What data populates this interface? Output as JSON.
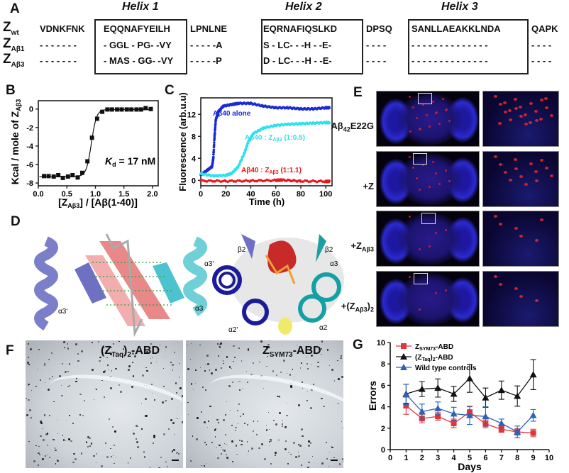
{
  "panel_labels": {
    "a": "A",
    "b": "B",
    "c": "C",
    "d": "D",
    "e": "E",
    "f": "F",
    "g": "G"
  },
  "panel_a": {
    "helix_titles": [
      "Helix 1",
      "Helix 2",
      "Helix 3"
    ],
    "rows": [
      {
        "name": "Z",
        "sub": "wt",
        "segments": [
          "VDNKFNK",
          "EQQNAFYEILH",
          "LPNLNE",
          "EQRNAFIQSLKD",
          "DPSQ",
          "SANLLAEAKKLNDA",
          "QAPK"
        ]
      },
      {
        "name": "Z",
        "sub": "Aβ1",
        "segments": [
          "- - - - - - -",
          "- GGL - PG- -VY",
          "- - - - -A",
          "S - LC- - -H - -E-",
          "- - - -",
          "- - - - - - - - - - - - - -",
          "- - - -"
        ]
      },
      {
        "name": "Z",
        "sub": "Aβ3",
        "segments": [
          "- - - - - - -",
          "- MAS - GG- -VY",
          "- - - - -P",
          "D - LC- - -H - -E-",
          "- - - -",
          "- - - - - - - - - - - - - -",
          "- - - -"
        ]
      }
    ]
  },
  "chart_data": [
    {
      "panel": "B",
      "type": "scatter",
      "xlabel": "[Z_Aβ3] / [Aβ(1-40)]",
      "xlabel_parts": [
        "[Z",
        "Aβ3",
        "] / [Aβ(1-40)]"
      ],
      "ylabel": "Kcal / mole of Z_Aβ3",
      "ylabel_parts": [
        "Kcal / mole of Z",
        "Aβ3"
      ],
      "xlim": [
        0,
        2.1
      ],
      "ylim": [
        -8.3,
        0.9
      ],
      "xticks": [
        "0.0",
        "0.5",
        "1.0",
        "1.5",
        "2.0"
      ],
      "yticks": [
        "0",
        "-2",
        "-4",
        "-6",
        "-8"
      ],
      "annotation": {
        "k": "K",
        "sub": "d",
        "text": " = 17 nM"
      },
      "points": [
        [
          0.1,
          -7.25
        ],
        [
          0.18,
          -7.25
        ],
        [
          0.27,
          -7.3
        ],
        [
          0.35,
          -7.15
        ],
        [
          0.43,
          -7.45
        ],
        [
          0.52,
          -7.3
        ],
        [
          0.6,
          -7.15
        ],
        [
          0.69,
          -7.4
        ],
        [
          0.77,
          -6.9
        ],
        [
          0.86,
          -5.65
        ],
        [
          0.94,
          -3.1
        ],
        [
          1.03,
          -1.05
        ],
        [
          1.12,
          -0.3
        ],
        [
          1.21,
          -0.05
        ],
        [
          1.29,
          -0.05
        ],
        [
          1.38,
          -0.05
        ],
        [
          1.46,
          -0.05
        ],
        [
          1.55,
          -0.05
        ],
        [
          1.63,
          -0.05
        ],
        [
          1.72,
          -0.05
        ],
        [
          1.8,
          -0.05
        ],
        [
          1.88,
          0.1
        ],
        [
          1.97,
          0.0
        ]
      ],
      "fit": "sigmoid",
      "grid": false
    },
    {
      "panel": "C",
      "type": "line",
      "xlabel": "Time (h)",
      "ylabel": "Fluorescence (arb.u.u)",
      "xlim": [
        0,
        105
      ],
      "ylim": [
        -1,
        15
      ],
      "xticks": [
        "0",
        "20",
        "40",
        "60",
        "80",
        "100"
      ],
      "yticks": [
        "0",
        "4",
        "8",
        "12"
      ],
      "series": [
        {
          "name": "Aβ40 alone",
          "name_parts": [
            "Aβ40 alone"
          ],
          "color": "#1a2bd6",
          "x": [
            0,
            5,
            9,
            10,
            11,
            12,
            14,
            18,
            25,
            30,
            40,
            50,
            60,
            70,
            80,
            90,
            100,
            103
          ],
          "y": [
            1,
            1.8,
            2.5,
            4,
            8,
            11,
            12.5,
            13.5,
            13.8,
            14,
            14,
            13.5,
            13.2,
            13.2,
            13,
            13,
            13.2,
            13.2
          ]
        },
        {
          "name": "Aβ40 : Z_Aβ3 (1:0.5)",
          "name_parts": [
            "Aβ40 : Z",
            "Aβ3",
            "  (1:0.5)"
          ],
          "color": "#2fe0ee",
          "x": [
            0,
            10,
            20,
            25,
            30,
            35,
            38,
            42,
            50,
            60,
            70,
            80,
            90,
            100,
            103
          ],
          "y": [
            1.2,
            0.8,
            0.9,
            1.3,
            2.5,
            5,
            7,
            8.5,
            9.5,
            10,
            10.2,
            10.3,
            10.4,
            10.5,
            10.5
          ]
        },
        {
          "name": "Aβ40 : Z_Aβ3 (1:1.1)",
          "name_parts": [
            "Aβ40 : Z",
            "Aβ3",
            "  (1:1.1)"
          ],
          "color": "#e8171c",
          "x": [
            0,
            20,
            40,
            60,
            65,
            80,
            100,
            103
          ],
          "y": [
            -0.1,
            -0.15,
            -0.1,
            0,
            0.05,
            -0.15,
            -0.2,
            -0.2
          ]
        }
      ],
      "grid": false
    },
    {
      "panel": "G",
      "type": "line",
      "xlabel": "Days",
      "ylabel": "Errors",
      "xlim": [
        0,
        10
      ],
      "ylim": [
        0,
        10
      ],
      "xticks": [
        "0",
        "1",
        "2",
        "3",
        "4",
        "5",
        "6",
        "7",
        "8",
        "9",
        "10"
      ],
      "yticks": [
        "0",
        "2",
        "4",
        "6",
        "8",
        "10"
      ],
      "legend_position": "top-left",
      "x": [
        1,
        2,
        3,
        4,
        5,
        6,
        7,
        8,
        9
      ],
      "series": [
        {
          "name": "Z_SYM73-ABD",
          "name_parts": [
            "Z",
            "SYM73",
            "-ABD"
          ],
          "color": "#e0353b",
          "marker": "square",
          "values": [
            4.1,
            2.9,
            3.1,
            2.45,
            3.5,
            2.4,
            1.9,
            1.65,
            1.55
          ],
          "errors": [
            0.8,
            0.4,
            0.35,
            0.4,
            0.5,
            0.35,
            0.3,
            0.3,
            0.35
          ]
        },
        {
          "name": "(Z_Taq)2-ABD",
          "name_parts": [
            "(Z",
            "Taq",
            ")",
            "2",
            "-ABD"
          ],
          "color": "#111111",
          "marker": "triangle",
          "values": [
            5.2,
            5.65,
            5.75,
            5.2,
            6.65,
            4.85,
            5.55,
            5.0,
            7.0
          ],
          "errors": [
            0.9,
            0.7,
            0.85,
            0.7,
            1.3,
            0.9,
            0.85,
            0.95,
            1.4
          ]
        },
        {
          "name": "Wild type controls",
          "name_parts": [
            "Wild type controls"
          ],
          "color": "#2a63b8",
          "marker": "triangle",
          "values": [
            5.15,
            3.55,
            3.85,
            3.35,
            3.2,
            3.1,
            2.45,
            1.65,
            3.2
          ],
          "errors": [
            0.95,
            0.7,
            0.6,
            0.6,
            0.85,
            0.9,
            0.4,
            0.55,
            0.55
          ]
        }
      ],
      "grid": false
    }
  ],
  "panel_d": {
    "labels": [
      "α3'",
      "α3",
      "α3'",
      "α3",
      "α2'",
      "α2",
      "β2",
      "β2"
    ]
  },
  "panel_e": {
    "conditions": [
      {
        "parts": [
          "Aβ",
          "42",
          "E22G"
        ]
      },
      {
        "parts": [
          "+Z",
          "",
          ""
        ]
      },
      {
        "parts": [
          "+Z",
          "Aβ3",
          ""
        ]
      },
      {
        "parts": [
          "+(Z",
          "Aβ3",
          ")",
          "2"
        ]
      }
    ]
  },
  "panel_f": {
    "titles": [
      {
        "parts": [
          "(Z",
          "Taq",
          ")",
          "2",
          "-ABD"
        ]
      },
      {
        "parts": [
          "Z",
          "SYM73",
          "-ABD"
        ]
      }
    ]
  }
}
